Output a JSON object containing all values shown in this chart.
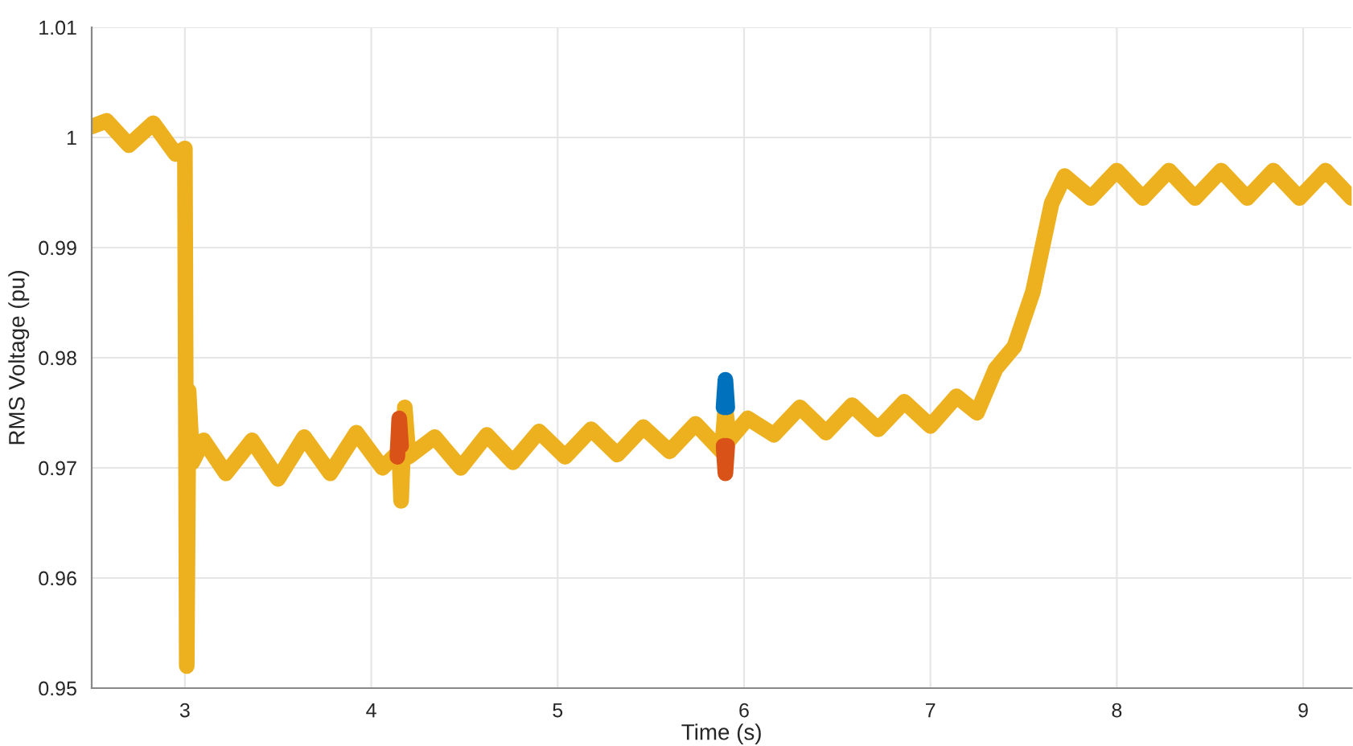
{
  "chart_data": {
    "type": "line",
    "xlabel": "Time (s)",
    "ylabel": "RMS Voltage (pu)",
    "xlim": [
      2.5,
      9.26
    ],
    "xticks": [
      3,
      4,
      5,
      6,
      7,
      8,
      9
    ],
    "ylim": [
      0.95,
      1.01
    ],
    "yticks": [
      {
        "value": 0.95,
        "label": "0.95"
      },
      {
        "value": 0.96,
        "label": "0.96"
      },
      {
        "value": 0.97,
        "label": "0.97"
      },
      {
        "value": 0.98,
        "label": "0.98"
      },
      {
        "value": 0.99,
        "label": "0.99"
      },
      1,
      {
        "value": 1.01,
        "label": "1.01"
      }
    ],
    "grid": true,
    "marker": "none",
    "line_style": "solid",
    "series": [
      {
        "color": "#0072bd",
        "x": [
          5.89,
          5.9,
          5.91
        ],
        "values": [
          0.9755,
          0.978,
          0.9755
        ]
      },
      {
        "color": "#d95319",
        "x": [
          4.14,
          4.15,
          4.16,
          5.0,
          5.89,
          5.9,
          5.91
        ],
        "values": [
          0.971,
          0.9745,
          0.972,
          null,
          0.972,
          0.9695,
          0.972
        ]
      },
      {
        "color": "#edb120",
        "x": [
          2.5,
          2.58,
          2.7,
          2.83,
          2.95,
          3.0,
          3.01,
          3.02,
          3.04,
          3.1,
          3.22,
          3.36,
          3.5,
          3.64,
          3.78,
          3.92,
          4.06,
          4.15,
          4.16,
          4.18,
          4.2,
          4.34,
          4.48,
          4.62,
          4.76,
          4.9,
          5.04,
          5.18,
          5.32,
          5.46,
          5.6,
          5.74,
          5.88,
          5.9,
          5.92,
          6.02,
          6.16,
          6.3,
          6.44,
          6.58,
          6.72,
          6.86,
          7.0,
          7.14,
          7.25,
          7.35,
          7.45,
          7.55,
          7.65,
          7.72,
          7.86,
          8.0,
          8.14,
          8.28,
          8.42,
          8.56,
          8.7,
          8.84,
          8.98,
          9.12,
          9.26
        ],
        "values": [
          1.001,
          1.0015,
          0.9993,
          1.0013,
          0.9985,
          0.999,
          0.952,
          0.977,
          0.9705,
          0.9725,
          0.9695,
          0.9725,
          0.969,
          0.9728,
          0.9695,
          0.9732,
          0.97,
          0.9715,
          0.967,
          0.9755,
          0.971,
          0.9728,
          0.97,
          0.973,
          0.9705,
          0.9733,
          0.971,
          0.9735,
          0.9712,
          0.9737,
          0.9715,
          0.974,
          0.9715,
          0.9755,
          0.9725,
          0.9745,
          0.973,
          0.9755,
          0.9732,
          0.9757,
          0.9735,
          0.976,
          0.9738,
          0.9765,
          0.975,
          0.979,
          0.981,
          0.986,
          0.994,
          0.9965,
          0.9945,
          0.997,
          0.9945,
          0.997,
          0.9945,
          0.997,
          0.9945,
          0.997,
          0.9945,
          0.997,
          0.9945
        ]
      }
    ]
  }
}
